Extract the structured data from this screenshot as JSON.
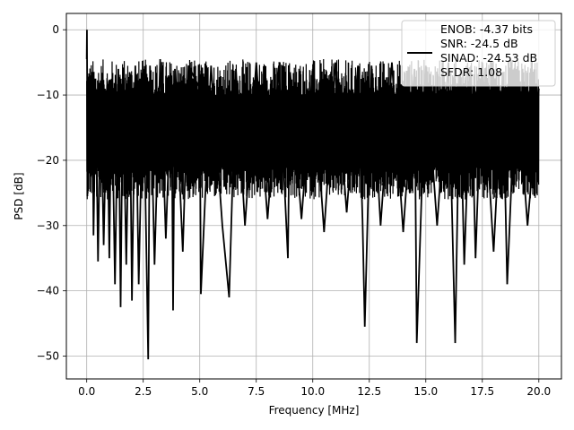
{
  "chart_data": {
    "type": "line",
    "title": "",
    "xlabel": "Frequency [MHz]",
    "ylabel": "PSD [dB]",
    "xlim": [
      -0.9,
      21.0
    ],
    "ylim": [
      -53.5,
      2.5
    ],
    "xticks": [
      0.0,
      2.5,
      5.0,
      7.5,
      10.0,
      12.5,
      15.0,
      17.5,
      20.0
    ],
    "xtick_labels": [
      "0.0",
      "2.5",
      "5.0",
      "7.5",
      "10.0",
      "12.5",
      "15.0",
      "17.5",
      "20.0"
    ],
    "yticks": [
      0,
      -10,
      -20,
      -30,
      -40,
      -50
    ],
    "ytick_labels": [
      "0",
      "−10",
      "−20",
      "−30",
      "−40",
      "−50"
    ],
    "grid": true,
    "legend_position": "top-right",
    "legend_lines": [
      "ENOB: -4.37 bits",
      "SNR: -24.5 dB",
      "SINAD: -24.53 dB",
      "SFDR: 1.08"
    ],
    "line_color": "#000000",
    "x_range": [
      0.0,
      20.0
    ],
    "noise_band": {
      "upper_dB": [
        -10,
        -4.5
      ],
      "lower_dB": [
        -26,
        -21
      ]
    },
    "series": [
      {
        "name": "ENOB: -4.37 bits",
        "x": [
          0.0,
          0.01,
          0.02,
          0.03,
          0.05,
          0.08,
          0.12,
          0.15,
          0.18,
          0.2,
          0.25,
          0.3,
          0.4,
          0.5,
          0.62,
          0.75,
          0.9,
          1.0,
          1.1,
          1.25,
          1.4,
          1.5,
          1.6,
          1.75,
          1.9,
          2.0,
          2.15,
          2.3,
          2.5,
          2.65,
          2.72,
          2.8,
          3.0,
          3.25,
          3.5,
          3.75,
          3.82,
          3.9,
          4.25,
          4.5,
          5.0,
          5.05,
          5.5,
          6.0,
          6.3,
          6.6,
          7.0,
          7.5,
          8.0,
          8.5,
          8.9,
          9.0,
          9.5,
          10.0,
          10.5,
          11.0,
          11.5,
          12.0,
          12.2,
          12.3,
          12.6,
          13.0,
          13.5,
          14.0,
          14.5,
          14.6,
          15.0,
          15.5,
          16.0,
          16.3,
          16.5,
          16.7,
          17.0,
          17.2,
          17.5,
          18.0,
          18.4,
          18.6,
          19.0,
          19.5,
          20.0
        ],
        "y": [
          -4.5,
          0.0,
          -8.5,
          -25.5,
          -12.0,
          -8.0,
          -22.0,
          -11.0,
          -7.0,
          -20.0,
          -8.5,
          -31.5,
          -9.0,
          -35.5,
          -9.0,
          -33.0,
          -8.5,
          -35.0,
          -7.5,
          -39.0,
          -6.0,
          -42.5,
          -7.5,
          -36.0,
          -6.5,
          -41.5,
          -5.5,
          -39.0,
          -6.0,
          -36.0,
          -50.5,
          -5.5,
          -36.0,
          -4.5,
          -32.0,
          -7.0,
          -43.0,
          -6.0,
          -34.0,
          -5.5,
          -9.0,
          -40.5,
          -5.5,
          -30.0,
          -41.0,
          -6.0,
          -30.0,
          -5.0,
          -29.0,
          -5.5,
          -35.0,
          -6.5,
          -29.0,
          -6.0,
          -31.0,
          -5.0,
          -28.0,
          -5.5,
          -29.0,
          -45.5,
          -5.5,
          -30.0,
          -5.0,
          -31.0,
          -6.0,
          -48.0,
          -5.5,
          -30.0,
          -5.0,
          -48.0,
          -7.0,
          -36.0,
          -5.5,
          -35.0,
          -5.0,
          -34.0,
          -6.5,
          -39.0,
          -6.0,
          -30.0,
          -9.0
        ]
      }
    ]
  }
}
